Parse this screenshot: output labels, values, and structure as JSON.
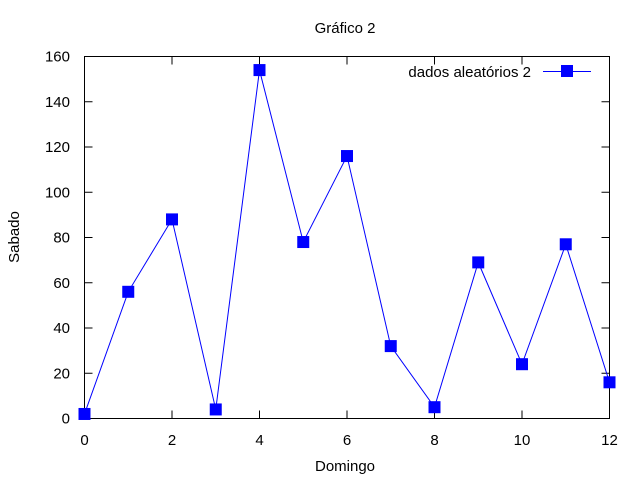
{
  "chart_data": {
    "type": "line",
    "title": "Gráfico 2",
    "xlabel": "Domingo",
    "ylabel": "Sabado",
    "xlim": [
      0,
      12
    ],
    "ylim": [
      0,
      160
    ],
    "x_ticks": [
      0,
      2,
      4,
      6,
      8,
      10,
      12
    ],
    "y_ticks": [
      0,
      20,
      40,
      60,
      80,
      100,
      120,
      140,
      160
    ],
    "grid": false,
    "legend_position": "top-right",
    "series": [
      {
        "name": "dados aleatórios 2",
        "color": "#0000ff",
        "marker": "square",
        "x": [
          0,
          1,
          2,
          3,
          4,
          5,
          6,
          7,
          8,
          9,
          10,
          11,
          12
        ],
        "y": [
          2,
          56,
          88,
          4,
          154,
          78,
          116,
          32,
          5,
          69,
          24,
          77,
          16
        ]
      }
    ]
  }
}
